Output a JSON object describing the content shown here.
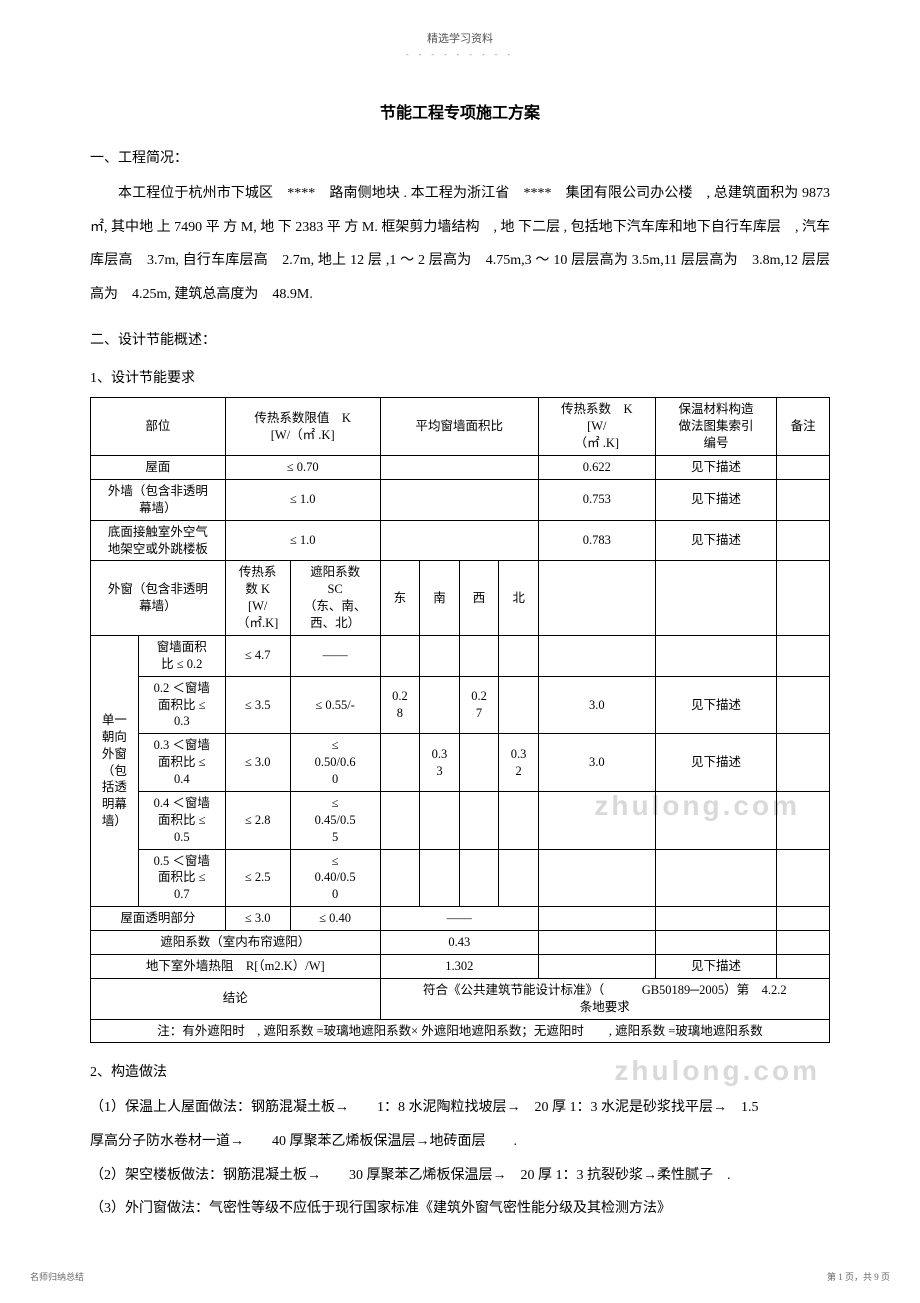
{
  "header": {
    "top_label": "精选学习资料",
    "dots": "- - - - - - - - -"
  },
  "title": "节能工程专项施工方案",
  "section1": {
    "head": "一、工程简况：",
    "p1": "本工程位于杭州市下城区　****　路南侧地块 . 本工程为浙江省　****　集团有限公司办公楼　, 总建筑面积为 9873 ㎡, 其中地 上 7490 平 方 M, 地 下 2383 平 方 M. 框架剪力墙结构　, 地 下二层 , 包括地下汽车库和地下自行车库层　, 汽车库层高　3.7m, 自行车库层高　2.7m, 地上 12 层 ,1 ～ 2 层高为　4.75m,3 ～ 10 层层高为 3.5m,11 层层高为　3.8m,12 层层高为　4.25m, 建筑总高度为　48.9M."
  },
  "section2": {
    "head": "二、设计节能概述：",
    "sub1": "1、设计节能要求"
  },
  "table": {
    "head": {
      "c1": "部位",
      "c2": "传热系数限值　K\n[W/（㎡ .K]",
      "c3": "平均窗墙面积比",
      "c4": "传热系数　K\n[W/\n（㎡ .K]",
      "c5": "保温材料构造\n做法图集索引\n编号",
      "c6": "备注"
    },
    "r1": {
      "c1": "屋面",
      "c2": "≤ 0.70",
      "c4": "0.622",
      "c5": "见下描述"
    },
    "r2": {
      "c1": "外墙（包含非透明\n幕墙）",
      "c2": "≤ 1.0",
      "c4": "0.753",
      "c5": "见下描述"
    },
    "r3": {
      "c1": "底面接触室外空气\n地架空或外跳楼板",
      "c2": "≤ 1.0",
      "c4": "0.783",
      "c5": "见下描述"
    },
    "r4": {
      "c1": "外窗（包含非透明\n幕墙）",
      "sub_a": "传热系\n数 K\n[W/\n（㎡.K]",
      "sub_b": "遮阳系数\nSC\n（东、南、\n西、北）",
      "east": "东",
      "south": "南",
      "west": "西",
      "north": "北"
    },
    "rowgroup_label": "单一\n朝向\n外窗\n（包\n括透\n明幕\n墙）",
    "g1": {
      "label": "窗墙面积\n比 ≤ 0.2",
      "a": "≤ 4.7",
      "b": "——"
    },
    "g2": {
      "label": "0.2 ＜窗墙\n面积比 ≤\n0.3",
      "a": "≤ 3.5",
      "b": "≤ 0.55/-",
      "e": "0.2\n8",
      "w": "0.2\n7",
      "k": "3.0",
      "idx": "见下描述"
    },
    "g3": {
      "label": "0.3 ＜窗墙\n面积比 ≤\n0.4",
      "a": "≤ 3.0",
      "b": "≤\n0.50/0.6\n0",
      "s": "0.3\n3",
      "n": "0.3\n2",
      "k": "3.0",
      "idx": "见下描述"
    },
    "g4": {
      "label": "0.4 ＜窗墙\n面积比 ≤\n0.5",
      "a": "≤ 2.8",
      "b": "≤\n0.45/0.5\n5"
    },
    "g5": {
      "label": "0.5 ＜窗墙\n面积比 ≤\n0.7",
      "a": "≤ 2.5",
      "b": "≤\n0.40/0.5\n0"
    },
    "r_roof_trans": {
      "c1": "屋面透明部分",
      "a": "≤ 3.0",
      "b": "≤ 0.40",
      "mid": "——"
    },
    "r_shade": {
      "c1": "遮阳系数（室内布帘遮阳）",
      "mid": "0.43"
    },
    "r_basement": {
      "c1": "地下室外墙热阻　R[（m2.K）/W]",
      "mid": "1.302",
      "idx": "见下描述"
    },
    "r_conclusion": {
      "c1": "结论",
      "text": "符合《公共建筑节能设计标准》（　　　GB50189─2005）第　4.2.2\n条地要求"
    },
    "note": "注：有外遮阳时　, 遮阳系数 =玻璃地遮阳系数× 外遮阳地遮阳系数；无遮阳时　　, 遮阳系数 =玻璃地遮阳系数"
  },
  "section3": {
    "sub2": "2、构造做法",
    "p1": "（1）保温上人屋面做法：钢筋混凝土板→　　1：8 水泥陶粒找坡层→　20 厚 1：3 水泥是砂浆找平层→　1.5",
    "p2": "厚高分子防水卷材一道→　　40 厚聚苯乙烯板保温层→地砖面层　　.",
    "p3": "（2）架空楼板做法：钢筋混凝土板→　　30 厚聚苯乙烯板保温层→　20 厚 1：3 抗裂砂浆→柔性腻子　.",
    "p4": "（3）外门窗做法：气密性等级不应低于现行国家标准《建筑外窗气密性能分级及其检测方法》"
  },
  "footer": {
    "left": "名师归纳总结",
    "right": "第 1 页，共 9 页"
  },
  "watermarks": {
    "wm1": "zhulong.com",
    "wm2": "zhulong.com"
  }
}
